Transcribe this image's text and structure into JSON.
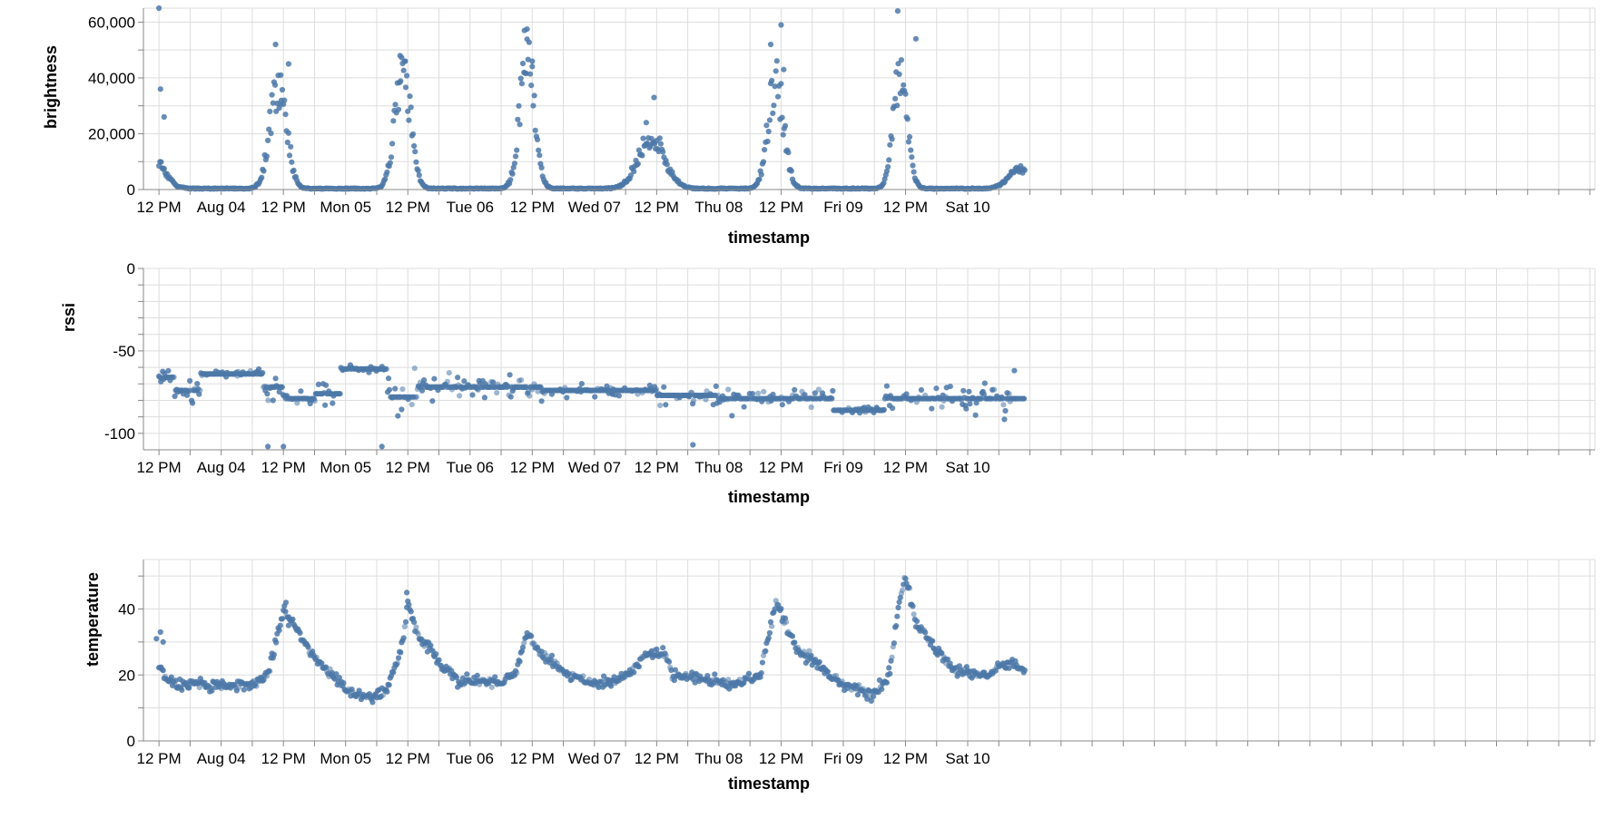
{
  "chart_data": [
    {
      "type": "scatter",
      "name": "brightness",
      "xlabel": "timestamp",
      "ylabel": "brightness",
      "xlim": [
        -3,
        277
      ],
      "ylim": [
        0,
        65000
      ],
      "x_ticks": [
        {
          "x": 0,
          "label": "12 PM"
        },
        {
          "x": 12,
          "label": "Aug 04"
        },
        {
          "x": 24,
          "label": "12 PM"
        },
        {
          "x": 36,
          "label": "Mon 05"
        },
        {
          "x": 48,
          "label": "12 PM"
        },
        {
          "x": 60,
          "label": "Tue 06"
        },
        {
          "x": 72,
          "label": "12 PM"
        },
        {
          "x": 84,
          "label": "Wed 07"
        },
        {
          "x": 96,
          "label": "12 PM"
        },
        {
          "x": 108,
          "label": "Thu 08"
        },
        {
          "x": 120,
          "label": "12 PM"
        },
        {
          "x": 132,
          "label": "Fri 09"
        },
        {
          "x": 144,
          "label": "12 PM"
        },
        {
          "x": 156,
          "label": "Sat 10"
        }
      ],
      "y_ticks": [
        {
          "y": 0,
          "label": "0"
        },
        {
          "y": 20000,
          "label": "20,000"
        },
        {
          "y": 40000,
          "label": "40,000"
        },
        {
          "y": 60000,
          "label": "60,000"
        }
      ],
      "y_ticks_unlabeled": [
        10000,
        30000,
        50000
      ],
      "daily_peaks": [
        {
          "center_hours": -1,
          "peak": 10000,
          "sharpness": 1.2
        },
        {
          "center_hours": 23,
          "peak": 38000,
          "sharpness": 1.6
        },
        {
          "center_hours": 47,
          "peak": 42000,
          "sharpness": 1.7
        },
        {
          "center_hours": 71,
          "peak": 46000,
          "sharpness": 1.8
        },
        {
          "center_hours": 95,
          "peak": 18000,
          "sharpness": 1.0
        },
        {
          "center_hours": 119,
          "peak": 38000,
          "sharpness": 1.7
        },
        {
          "center_hours": 143,
          "peak": 42000,
          "sharpness": 1.9
        },
        {
          "center_hours": 166,
          "peak": 7000,
          "sharpness": 1.2
        }
      ],
      "outliers": [
        {
          "x": 0,
          "y": 65000
        },
        {
          "x": 0.3,
          "y": 36000
        },
        {
          "x": 1,
          "y": 26000
        },
        {
          "x": 22.5,
          "y": 52000
        },
        {
          "x": 23.5,
          "y": 41000
        },
        {
          "x": 25,
          "y": 45000
        },
        {
          "x": 46.5,
          "y": 48000
        },
        {
          "x": 47.5,
          "y": 46000
        },
        {
          "x": 70.5,
          "y": 57000
        },
        {
          "x": 71,
          "y": 57500
        },
        {
          "x": 72,
          "y": 46000
        },
        {
          "x": 94,
          "y": 24000
        },
        {
          "x": 95.5,
          "y": 33000
        },
        {
          "x": 118,
          "y": 52000
        },
        {
          "x": 120,
          "y": 59000
        },
        {
          "x": 120.5,
          "y": 43000
        },
        {
          "x": 142.5,
          "y": 64000
        },
        {
          "x": 146,
          "y": 54000
        }
      ]
    },
    {
      "type": "scatter",
      "name": "rssi",
      "xlabel": "timestamp",
      "ylabel": "rssi",
      "xlim": [
        -3,
        277
      ],
      "ylim": [
        -110,
        0
      ],
      "x_ticks": [
        {
          "x": 0,
          "label": "12 PM"
        },
        {
          "x": 12,
          "label": "Aug 04"
        },
        {
          "x": 24,
          "label": "12 PM"
        },
        {
          "x": 36,
          "label": "Mon 05"
        },
        {
          "x": 48,
          "label": "12 PM"
        },
        {
          "x": 60,
          "label": "Tue 06"
        },
        {
          "x": 72,
          "label": "12 PM"
        },
        {
          "x": 84,
          "label": "Wed 07"
        },
        {
          "x": 96,
          "label": "12 PM"
        },
        {
          "x": 108,
          "label": "Thu 08"
        },
        {
          "x": 120,
          "label": "12 PM"
        },
        {
          "x": 132,
          "label": "Fri 09"
        },
        {
          "x": 144,
          "label": "12 PM"
        },
        {
          "x": 156,
          "label": "Sat 10"
        }
      ],
      "y_ticks": [
        {
          "y": 0,
          "label": "0"
        },
        {
          "y": -50,
          "label": "-50"
        },
        {
          "y": -100,
          "label": "-100"
        }
      ],
      "y_ticks_unlabeled": [
        -10,
        -20,
        -30,
        -40,
        -60,
        -70,
        -80,
        -90
      ],
      "levels": [
        {
          "from": 0,
          "to": 3,
          "value": -66,
          "spread": 3
        },
        {
          "from": 3,
          "to": 8,
          "value": -74,
          "spread": 4
        },
        {
          "from": 8,
          "to": 20,
          "value": -64,
          "spread": 1
        },
        {
          "from": 20,
          "to": 24,
          "value": -72,
          "spread": 3
        },
        {
          "from": 24,
          "to": 30,
          "value": -79,
          "spread": 2
        },
        {
          "from": 30,
          "to": 35,
          "value": -76,
          "spread": 5
        },
        {
          "from": 35,
          "to": 44,
          "value": -61,
          "spread": 1
        },
        {
          "from": 44,
          "to": 50,
          "value": -78,
          "spread": 6
        },
        {
          "from": 50,
          "to": 74,
          "value": -72,
          "spread": 3
        },
        {
          "from": 74,
          "to": 96,
          "value": -74,
          "spread": 2
        },
        {
          "from": 96,
          "to": 108,
          "value": -77,
          "spread": 3
        },
        {
          "from": 108,
          "to": 130,
          "value": -79,
          "spread": 4
        },
        {
          "from": 130,
          "to": 140,
          "value": -86,
          "spread": 1
        },
        {
          "from": 140,
          "to": 166,
          "value": -79,
          "spread": 5
        }
      ],
      "outliers": [
        {
          "x": 21,
          "y": -108
        },
        {
          "x": 24,
          "y": -108
        },
        {
          "x": 43,
          "y": -108
        },
        {
          "x": 103,
          "y": -107
        },
        {
          "x": 22,
          "y": -80
        },
        {
          "x": 165,
          "y": -62
        }
      ]
    },
    {
      "type": "scatter",
      "name": "temperature",
      "xlabel": "timestamp",
      "ylabel": "temperature",
      "xlim": [
        -3,
        277
      ],
      "ylim": [
        0,
        55
      ],
      "x_ticks": [
        {
          "x": 0,
          "label": "12 PM"
        },
        {
          "x": 12,
          "label": "Aug 04"
        },
        {
          "x": 24,
          "label": "12 PM"
        },
        {
          "x": 36,
          "label": "Mon 05"
        },
        {
          "x": 48,
          "label": "12 PM"
        },
        {
          "x": 60,
          "label": "Tue 06"
        },
        {
          "x": 72,
          "label": "12 PM"
        },
        {
          "x": 84,
          "label": "Wed 07"
        },
        {
          "x": 96,
          "label": "12 PM"
        },
        {
          "x": 108,
          "label": "Thu 08"
        },
        {
          "x": 120,
          "label": "12 PM"
        },
        {
          "x": 132,
          "label": "Fri 09"
        },
        {
          "x": 144,
          "label": "12 PM"
        },
        {
          "x": 156,
          "label": "Sat 10"
        }
      ],
      "y_ticks": [
        {
          "y": 0,
          "label": "0"
        },
        {
          "y": 20,
          "label": "20"
        },
        {
          "y": 40,
          "label": "40"
        }
      ],
      "y_ticks_unlabeled": [
        10,
        30,
        50
      ],
      "baseline": [
        {
          "x": 0,
          "y": 22
        },
        {
          "x": 3,
          "y": 17
        },
        {
          "x": 12,
          "y": 17
        },
        {
          "x": 18,
          "y": 17
        },
        {
          "x": 21,
          "y": 20
        },
        {
          "x": 24,
          "y": 40
        },
        {
          "x": 30,
          "y": 25
        },
        {
          "x": 36,
          "y": 16
        },
        {
          "x": 40,
          "y": 13
        },
        {
          "x": 44,
          "y": 15
        },
        {
          "x": 47,
          "y": 30
        },
        {
          "x": 48,
          "y": 42
        },
        {
          "x": 50,
          "y": 32
        },
        {
          "x": 54,
          "y": 24
        },
        {
          "x": 58,
          "y": 18
        },
        {
          "x": 66,
          "y": 18
        },
        {
          "x": 69,
          "y": 21
        },
        {
          "x": 71,
          "y": 33
        },
        {
          "x": 73,
          "y": 28
        },
        {
          "x": 78,
          "y": 21
        },
        {
          "x": 84,
          "y": 17
        },
        {
          "x": 88,
          "y": 18
        },
        {
          "x": 92,
          "y": 22
        },
        {
          "x": 94,
          "y": 27
        },
        {
          "x": 98,
          "y": 26
        },
        {
          "x": 99,
          "y": 20
        },
        {
          "x": 106,
          "y": 19
        },
        {
          "x": 110,
          "y": 17
        },
        {
          "x": 116,
          "y": 20
        },
        {
          "x": 118,
          "y": 35
        },
        {
          "x": 119,
          "y": 43
        },
        {
          "x": 121,
          "y": 35
        },
        {
          "x": 123,
          "y": 28
        },
        {
          "x": 128,
          "y": 22
        },
        {
          "x": 133,
          "y": 16
        },
        {
          "x": 138,
          "y": 14
        },
        {
          "x": 141,
          "y": 20
        },
        {
          "x": 142.5,
          "y": 40
        },
        {
          "x": 144,
          "y": 50
        },
        {
          "x": 146,
          "y": 36
        },
        {
          "x": 150,
          "y": 27
        },
        {
          "x": 154,
          "y": 21
        },
        {
          "x": 160,
          "y": 20
        },
        {
          "x": 164,
          "y": 24
        },
        {
          "x": 167,
          "y": 21
        }
      ],
      "outliers": [
        {
          "x": -0.5,
          "y": 31
        },
        {
          "x": 0.3,
          "y": 33
        },
        {
          "x": 0.8,
          "y": 30
        },
        {
          "x": 24.5,
          "y": 42
        },
        {
          "x": 25,
          "y": 35
        },
        {
          "x": 47.8,
          "y": 45
        }
      ]
    }
  ]
}
